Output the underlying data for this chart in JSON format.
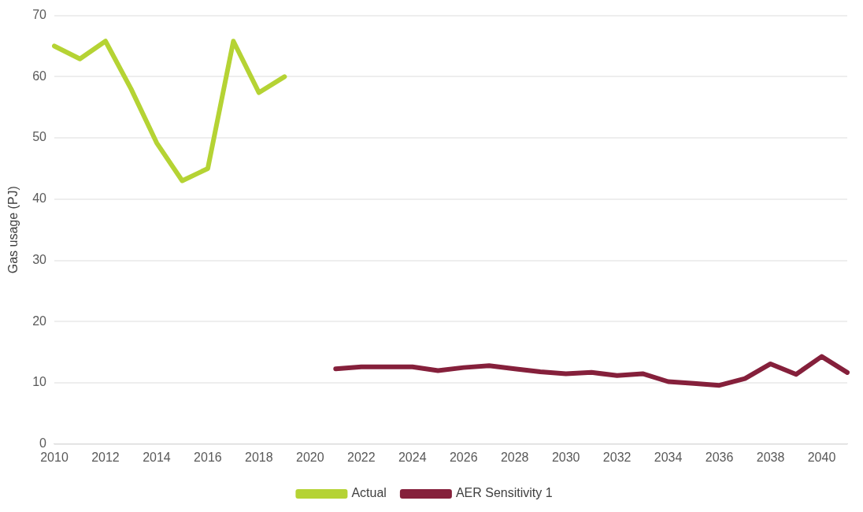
{
  "chart_data": {
    "type": "line",
    "ylabel": "Gas usage (PJ)",
    "categories": [
      "2010",
      null,
      "2012",
      null,
      "2014",
      null,
      "2016",
      null,
      "2018",
      null,
      "2020",
      null,
      "2022",
      null,
      "2024",
      null,
      "2026",
      null,
      "2028",
      null,
      "2030",
      null,
      "2032",
      null,
      "2034",
      null,
      "2036",
      null,
      "2038",
      null,
      "2040",
      null
    ],
    "series": [
      {
        "name": "Actual",
        "color": "#b5d334",
        "values": [
          65.0,
          62.9,
          65.8,
          58.0,
          49.2,
          43.0,
          45.0,
          65.8,
          57.4,
          60.0,
          null,
          null,
          null,
          null,
          null,
          null,
          null,
          null,
          null,
          null,
          null,
          null,
          null,
          null,
          null,
          null,
          null,
          null,
          null,
          null,
          null,
          null
        ]
      },
      {
        "name": "AER Sensitivity 1",
        "color": "#85203b",
        "values": [
          null,
          null,
          null,
          null,
          null,
          null,
          null,
          null,
          null,
          null,
          null,
          12.3,
          12.6,
          12.6,
          12.6,
          12.0,
          12.5,
          12.8,
          12.3,
          11.8,
          11.5,
          11.7,
          11.2,
          11.5,
          10.2,
          9.9,
          9.6,
          10.7,
          13.1,
          11.4,
          14.3,
          11.7
        ]
      }
    ],
    "ylim": [
      0,
      70
    ],
    "yticks": [
      0,
      10,
      20,
      30,
      40,
      50,
      60,
      70
    ],
    "grid": "y",
    "legend": "bottom",
    "marker": "none",
    "line_style": "solid"
  }
}
